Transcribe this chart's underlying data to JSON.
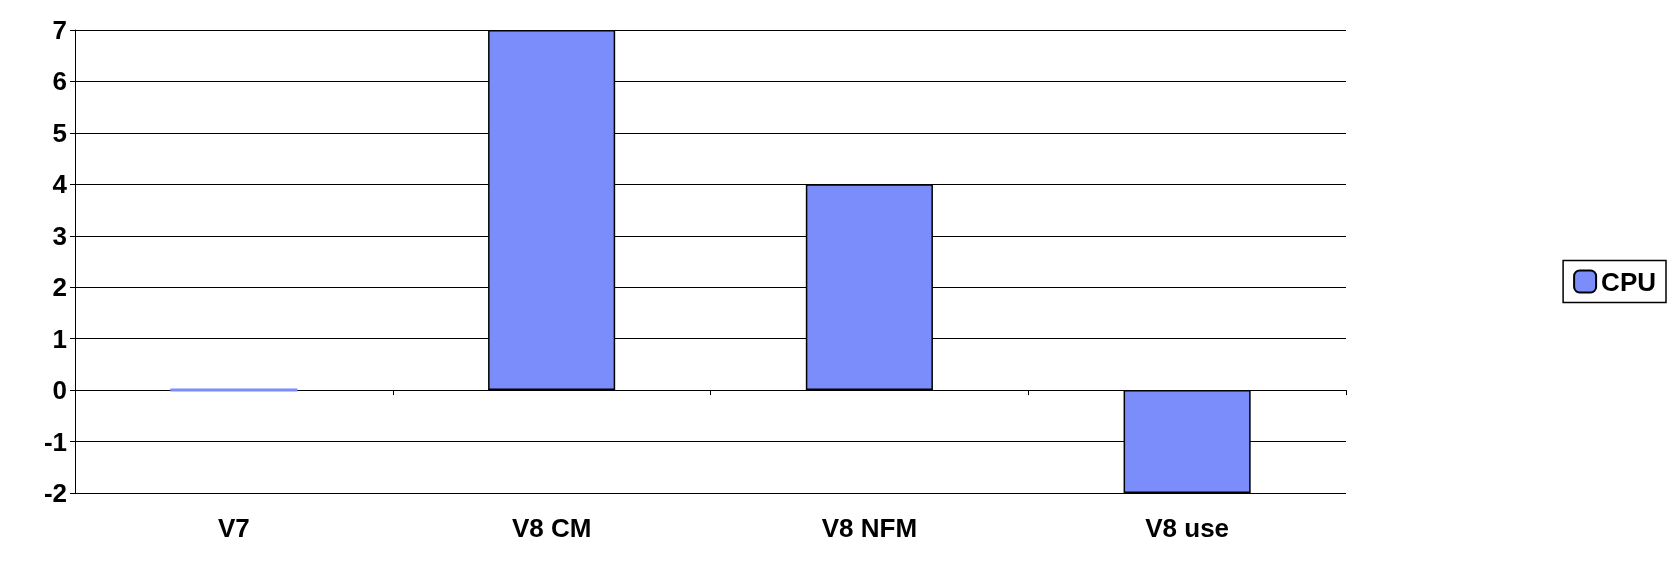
{
  "chart_data": {
    "type": "bar",
    "categories": [
      "V7",
      "V8 CM",
      "V8 NFM",
      "V8 use"
    ],
    "series": [
      {
        "name": "CPU",
        "color": "#7b8cfb",
        "values": [
          0,
          7,
          4,
          -2
        ]
      }
    ],
    "ylim": [
      -2,
      7
    ],
    "yticks": [
      -2,
      -1,
      0,
      1,
      2,
      3,
      4,
      5,
      6,
      7
    ],
    "grid": "y",
    "legend": "right"
  }
}
